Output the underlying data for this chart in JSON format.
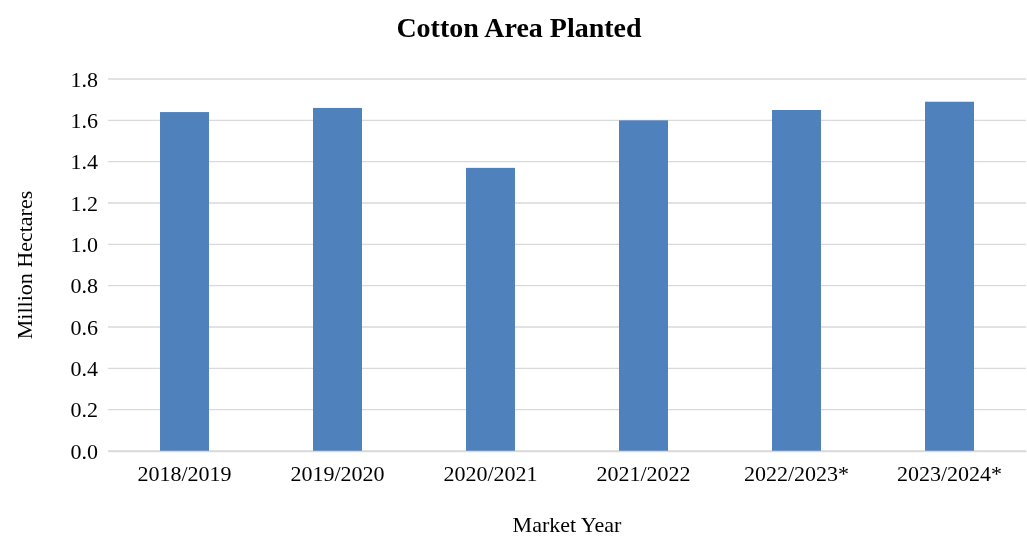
{
  "chart_data": {
    "type": "bar",
    "title": "Cotton Area Planted",
    "xlabel": "Market Year",
    "ylabel": "Million Hectares",
    "categories": [
      "2018/2019",
      "2019/2020",
      "2020/2021",
      "2021/2022",
      "2022/2023*",
      "2023/2024*"
    ],
    "values": [
      1.64,
      1.66,
      1.37,
      1.6,
      1.65,
      1.69
    ],
    "color": "#4f81bd",
    "ylim": [
      0,
      1.8
    ],
    "yticks": [
      {
        "value": 0,
        "label": "0.0"
      },
      {
        "value": 0.2,
        "label": "0.2"
      },
      {
        "value": 0.4,
        "label": "0.4"
      },
      {
        "value": 0.6,
        "label": "0.6"
      },
      {
        "value": 0.8,
        "label": "0.8"
      },
      {
        "value": 1,
        "label": "1.0"
      },
      {
        "value": 1.2,
        "label": "1.2"
      },
      {
        "value": 1.4,
        "label": "1.4"
      },
      {
        "value": 1.6,
        "label": "1.6"
      },
      {
        "value": 1.8,
        "label": "1.8"
      }
    ],
    "grid": "y"
  }
}
